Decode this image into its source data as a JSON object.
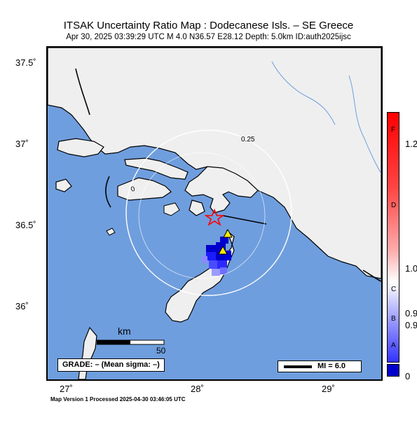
{
  "title": "ITSAK Uncertainty Ratio Map : Dodecanese Isls. – SE Greece",
  "subtitle": "Apr 30, 2025 03:39:29 UTC   M 4.0   N36.57 E28.12   Depth: 5.0km   ID:auth2025ijsc",
  "axes": {
    "y_ticks": [
      "37.5˚",
      "37˚",
      "36.5˚",
      "36˚"
    ],
    "x_ticks": [
      "27˚",
      "28˚",
      "29˚"
    ]
  },
  "contours": [
    "0.25",
    "0"
  ],
  "scale_bar": {
    "unit": "km",
    "value": "50"
  },
  "grade_label": "GRADE: – (Mean sigma: –)",
  "mi_label": "MI = 6.0",
  "colorbar": {
    "letters": [
      "F",
      "D",
      "C",
      "B",
      "A"
    ],
    "values": [
      "1.2",
      "1.0",
      "0.9",
      "0.9",
      "0"
    ]
  },
  "footer": "Map Version 1 Processed 2025-04-30 03:46:05 UTC",
  "colors": {
    "sea": "#6f9ede",
    "land": "#efefef",
    "epicenter": "#ff0000",
    "station": "#ffea00"
  }
}
